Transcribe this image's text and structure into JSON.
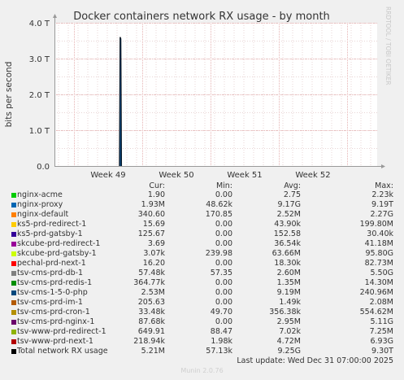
{
  "chart_data": {
    "type": "line",
    "title": "Docker containers network RX usage - by month",
    "ylabel": "bits per second",
    "xlabel": "",
    "ylim": [
      0,
      4000000000000.0
    ],
    "y_ticks": [
      {
        "value": 0,
        "label": "0.0"
      },
      {
        "value": 1000000000000.0,
        "label": "1.0 T"
      },
      {
        "value": 2000000000000.0,
        "label": "2.0 T"
      },
      {
        "value": 3000000000000.0,
        "label": "3.0 T"
      },
      {
        "value": 4000000000000.0,
        "label": "4.0 T"
      }
    ],
    "x_ticks": [
      "Week 49",
      "Week 50",
      "Week 51",
      "Week 52"
    ],
    "grid": true,
    "series": [
      {
        "name": "Total network RX usage",
        "x": [
          "Week 49",
          "Week 49",
          "Week 49",
          "Week 49"
        ],
        "values": [
          0,
          3600000000000.0,
          3550000000000.0,
          0
        ]
      }
    ]
  },
  "legend": {
    "headers": {
      "cur": "Cur:",
      "min": "Min:",
      "avg": "Avg:",
      "max": "Max:"
    },
    "rows": [
      {
        "name": "nginx-acme",
        "color": "#00cc00",
        "cur": "1.90",
        "min": "0.00",
        "avg": "2.75",
        "max": "2.23k"
      },
      {
        "name": "nginx-proxy",
        "color": "#0066b3",
        "cur": "1.93M",
        "min": "48.62k",
        "avg": "9.17G",
        "max": "9.19T"
      },
      {
        "name": "nginx-default",
        "color": "#ff8000",
        "cur": "340.60",
        "min": "170.85",
        "avg": "2.52M",
        "max": "2.27G"
      },
      {
        "name": "ks5-prd-redirect-1",
        "color": "#ffcc00",
        "cur": "15.69",
        "min": "0.00",
        "avg": "43.90k",
        "max": "199.80M"
      },
      {
        "name": "ks5-prd-gatsby-1",
        "color": "#330099",
        "cur": "125.67",
        "min": "0.00",
        "avg": "152.58",
        "max": "30.40k"
      },
      {
        "name": "skcube-prd-redirect-1",
        "color": "#990099",
        "cur": "3.69",
        "min": "0.00",
        "avg": "36.54k",
        "max": "41.18M"
      },
      {
        "name": "skcube-prd-gatsby-1",
        "color": "#ccff00",
        "cur": "3.07k",
        "min": "239.98",
        "avg": "63.66M",
        "max": "95.80G"
      },
      {
        "name": "pechal-prd-next-1",
        "color": "#ff0000",
        "cur": "16.20",
        "min": "0.00",
        "avg": "18.30k",
        "max": "82.73M"
      },
      {
        "name": "tsv-cms-prd-db-1",
        "color": "#808080",
        "cur": "57.48k",
        "min": "57.35",
        "avg": "2.60M",
        "max": "5.50G"
      },
      {
        "name": "tsv-cms-prd-redis-1",
        "color": "#008f00",
        "cur": "364.77k",
        "min": "0.00",
        "avg": "1.35M",
        "max": "14.30M"
      },
      {
        "name": "tsv-cms-1-5-0-php",
        "color": "#00487d",
        "cur": "2.53M",
        "min": "0.00",
        "avg": "9.19M",
        "max": "240.96M"
      },
      {
        "name": "tsv-cms-prd-im-1",
        "color": "#b35a00",
        "cur": "205.63",
        "min": "0.00",
        "avg": "1.49k",
        "max": "2.08M"
      },
      {
        "name": "tsv-cms-prd-cron-1",
        "color": "#b38f00",
        "cur": "33.48k",
        "min": "49.70",
        "avg": "356.38k",
        "max": "554.62M"
      },
      {
        "name": "tsv-cms-prd-nginx-1",
        "color": "#6b006b",
        "cur": "87.68k",
        "min": "0.00",
        "avg": "2.95M",
        "max": "5.11G"
      },
      {
        "name": "tsv-www-prd-redirect-1",
        "color": "#8fb300",
        "cur": "649.91",
        "min": "88.47",
        "avg": "7.02k",
        "max": "7.25M"
      },
      {
        "name": "tsv-www-prd-next-1",
        "color": "#b30000",
        "cur": "218.94k",
        "min": "1.98k",
        "avg": "4.72M",
        "max": "6.93G"
      },
      {
        "name": "Total network RX usage",
        "color": "#000000",
        "cur": "5.21M",
        "min": "57.13k",
        "avg": "9.25G",
        "max": "9.30T"
      }
    ]
  },
  "last_update": "Last update: Wed Dec 31 07:00:00 2025",
  "footer": "Munin 2.0.76",
  "watermark": "RRDTOOL / TOBI OETIKER"
}
